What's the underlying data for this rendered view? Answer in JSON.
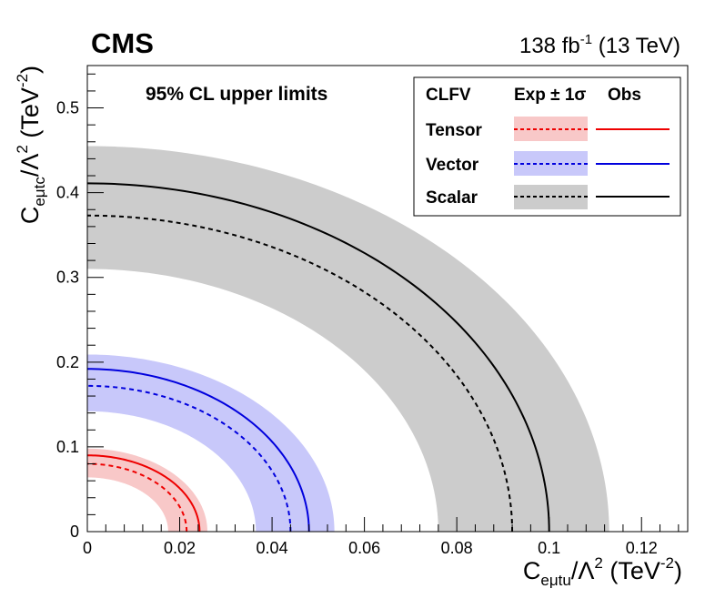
{
  "header": {
    "experiment": "CMS",
    "lumi_value": "138 fb",
    "lumi_exp": "-1",
    "energy": " (13 TeV)"
  },
  "chart_data": {
    "type": "contour-limits",
    "title": "95% CL upper limits",
    "xlabel": {
      "main": "C",
      "sub": "eμtu",
      "mid": "/Λ",
      "sup1": "2",
      "units": " (TeV",
      "sup2": "-2",
      "close": ")"
    },
    "ylabel": {
      "main": "C",
      "sub": "eμtc",
      "mid": "/Λ",
      "sup1": "2",
      "units": " (TeV",
      "sup2": "-2",
      "close": ")"
    },
    "xlim": [
      0,
      0.13
    ],
    "ylim": [
      0,
      0.55
    ],
    "x_ticks": [
      0,
      0.02,
      0.04,
      0.06,
      0.08,
      0.1,
      0.12
    ],
    "x_tick_labels": [
      "0",
      "0.02",
      "0.04",
      "0.06",
      "0.08",
      "0.1",
      "0.12"
    ],
    "y_ticks": [
      0,
      0.1,
      0.2,
      0.3,
      0.4,
      0.5
    ],
    "y_tick_labels": [
      "0",
      "0.1",
      "0.2",
      "0.3",
      "0.4",
      "0.5"
    ],
    "series": [
      {
        "name": "Scalar",
        "color": "#000000",
        "band_color": "#cccccc",
        "expected": {
          "x": 0.092,
          "y": 0.373
        },
        "band_inner": {
          "x": 0.076,
          "y": 0.31
        },
        "band_outer": {
          "x": 0.113,
          "y": 0.455
        },
        "observed": {
          "x": 0.1,
          "y": 0.411
        }
      },
      {
        "name": "Vector",
        "color": "#0000dd",
        "band_color": "#c8c8fa",
        "expected": {
          "x": 0.044,
          "y": 0.172
        },
        "band_inner": {
          "x": 0.0365,
          "y": 0.142
        },
        "band_outer": {
          "x": 0.0535,
          "y": 0.209
        },
        "observed": {
          "x": 0.048,
          "y": 0.192
        }
      },
      {
        "name": "Tensor",
        "color": "#ee0000",
        "band_color": "#f8c8c8",
        "expected": {
          "x": 0.0215,
          "y": 0.08
        },
        "band_inner": {
          "x": 0.0175,
          "y": 0.064
        },
        "band_outer": {
          "x": 0.026,
          "y": 0.098
        },
        "observed": {
          "x": 0.0243,
          "y": 0.09
        }
      }
    ],
    "legend": {
      "placement": "top-right",
      "header_label": "CLFV",
      "header_exp": "Exp ± 1σ",
      "header_obs": "Obs",
      "entries": [
        {
          "label": "Tensor",
          "line": "#ee0000",
          "band": "#f8c8c8"
        },
        {
          "label": "Vector",
          "line": "#0000dd",
          "band": "#c8c8fa"
        },
        {
          "label": "Scalar",
          "line": "#000000",
          "band": "#cccccc"
        }
      ]
    }
  }
}
